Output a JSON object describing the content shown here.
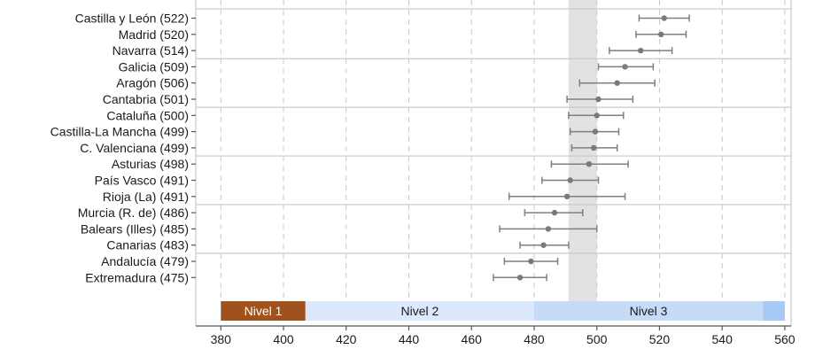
{
  "chart_data": {
    "type": "scatter",
    "title": "",
    "xlabel": "",
    "ylabel": "",
    "xlim": [
      372,
      562
    ],
    "x_ticks": [
      380,
      400,
      420,
      440,
      460,
      480,
      500,
      520,
      540,
      560
    ],
    "grid": "vertical dashed",
    "reference_band": [
      491,
      500
    ],
    "regions": [
      {
        "label": "Castilla y León (522)",
        "mean": 521.5,
        "ci": [
          513.5,
          529.5
        ]
      },
      {
        "label": "Madrid (520)",
        "mean": 520.5,
        "ci": [
          512.5,
          528.5
        ]
      },
      {
        "label": "Navarra (514)",
        "mean": 514.0,
        "ci": [
          504.0,
          524.0
        ]
      },
      {
        "label": "Galicia (509)",
        "mean": 509.0,
        "ci": [
          500.5,
          518.0
        ]
      },
      {
        "label": "Aragón (506)",
        "mean": 506.5,
        "ci": [
          494.5,
          518.5
        ]
      },
      {
        "label": "Cantabria (501)",
        "mean": 500.5,
        "ci": [
          490.5,
          511.5
        ]
      },
      {
        "label": "Cataluña (500)",
        "mean": 500.0,
        "ci": [
          491.0,
          508.5
        ]
      },
      {
        "label": "Castilla-La Mancha (499)",
        "mean": 499.5,
        "ci": [
          491.5,
          507.0
        ]
      },
      {
        "label": "C. Valenciana (499)",
        "mean": 499.0,
        "ci": [
          492.0,
          506.5
        ]
      },
      {
        "label": "Asturias (498)",
        "mean": 497.5,
        "ci": [
          485.5,
          510.0
        ]
      },
      {
        "label": "País Vasco (491)",
        "mean": 491.5,
        "ci": [
          482.5,
          500.5
        ]
      },
      {
        "label": "Rioja (La) (491)",
        "mean": 490.5,
        "ci": [
          472.0,
          509.0
        ]
      },
      {
        "label": "Murcia (R. de) (486)",
        "mean": 486.5,
        "ci": [
          477.0,
          495.5
        ]
      },
      {
        "label": "Balears (Illes) (485)",
        "mean": 484.5,
        "ci": [
          469.0,
          500.0
        ]
      },
      {
        "label": "Canarias (483)",
        "mean": 483.0,
        "ci": [
          475.5,
          491.0
        ]
      },
      {
        "label": "Andalucía (479)",
        "mean": 479.0,
        "ci": [
          470.5,
          487.5
        ]
      },
      {
        "label": "Extremadura (475)",
        "mean": 475.5,
        "ci": [
          467.0,
          484.0
        ]
      }
    ],
    "group_separators_after": [
      2,
      5,
      8,
      11,
      14
    ],
    "levels": [
      {
        "label": "Nivel 1",
        "from": 380,
        "to": 407,
        "color": "#a0521d",
        "text_color": "#ffffff"
      },
      {
        "label": "Nivel 2",
        "from": 407,
        "to": 480,
        "color": "#dce8fb",
        "text_color": "#1a1a1a"
      },
      {
        "label": "Nivel 3",
        "from": 480,
        "to": 553,
        "color": "#c5dbf8",
        "text_color": "#1a1a1a"
      },
      {
        "label": "",
        "from": 553,
        "to": 560,
        "color": "#a9c9f6",
        "text_color": "#1a1a1a"
      }
    ],
    "colors": {
      "point": "#7a7a7a",
      "ci_line": "#7f7f7f",
      "grid": "#c8c8c8",
      "reference_band": "#e2e2e2",
      "separator": "#c9c9c9",
      "axis": "#555555"
    }
  }
}
